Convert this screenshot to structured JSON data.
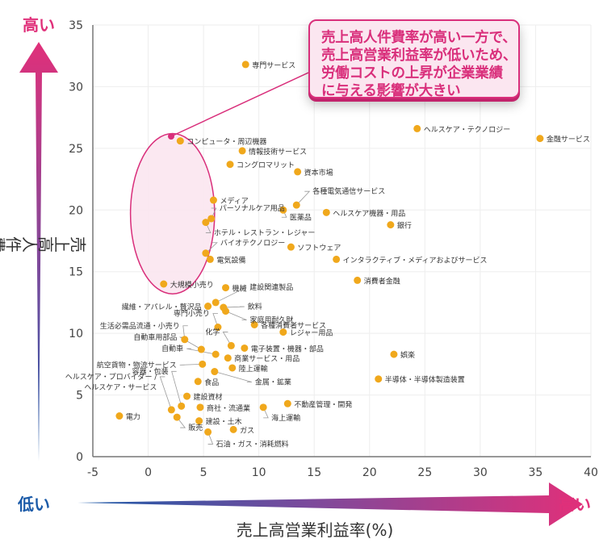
{
  "chart_data": {
    "type": "scatter",
    "title": "",
    "xlabel": "売上高営業利益率(%)",
    "ylabel": "売上高人件費率(%)",
    "xlim": [
      -5,
      40
    ],
    "ylim": [
      0,
      35
    ],
    "xticks": [
      "-5",
      "0",
      "5",
      "10",
      "15",
      "20",
      "25",
      "30",
      "35",
      "40"
    ],
    "yticks": [
      "0",
      "5",
      "10",
      "15",
      "20",
      "25",
      "30",
      "35"
    ],
    "grid": true,
    "point_color": "#f0a81c",
    "x_arrow": {
      "low": "低い",
      "high": "高い"
    },
    "y_arrow": {
      "low": "低い",
      "high": "高い"
    },
    "callout": {
      "lines": [
        "売上高人件費率が高い一方で、",
        "売上高営業利益率が低いため、",
        "労働コストの上昇が企業業績",
        "に与える影響が大きい"
      ],
      "color": "#d92f7b"
    },
    "highlight_region": {
      "x_center": 2.2,
      "y_center": 19.7,
      "x_radius": 3.8,
      "y_radius": 6.5
    },
    "points": [
      {
        "label": "専門サービス",
        "x": 8.8,
        "y": 31.8
      },
      {
        "label": "ヘルスケア・テクノロジー",
        "x": 24.3,
        "y": 26.6
      },
      {
        "label": "金融サービス",
        "x": 35.4,
        "y": 25.8
      },
      {
        "label": "コンピュータ・周辺機器",
        "x": 2.9,
        "y": 25.6
      },
      {
        "label": "情報技術サービス",
        "x": 8.5,
        "y": 24.8
      },
      {
        "label": "コングロマリット",
        "x": 7.4,
        "y": 23.7
      },
      {
        "label": "資本市場",
        "x": 13.5,
        "y": 23.1
      },
      {
        "label": "メディア",
        "x": 5.9,
        "y": 20.8
      },
      {
        "label": "各種電気通信サービス",
        "x": 13.4,
        "y": 20.4
      },
      {
        "label": "医薬品",
        "x": 12.2,
        "y": 20.0
      },
      {
        "label": "ヘルスケア機器・用品",
        "x": 16.1,
        "y": 19.8
      },
      {
        "label": "パーソナルケア用品",
        "x": 5.7,
        "y": 19.3
      },
      {
        "label": "ホテル・レストラン・レジャー",
        "x": 5.2,
        "y": 19.0
      },
      {
        "label": "銀行",
        "x": 21.9,
        "y": 18.8
      },
      {
        "label": "バイオテクノロジー",
        "x": 5.2,
        "y": 16.5
      },
      {
        "label": "ソフトウェア",
        "x": 12.9,
        "y": 17.0
      },
      {
        "label": "電気設備",
        "x": 5.6,
        "y": 16.0
      },
      {
        "label": "インタラクティブ・メディアおよびサービス",
        "x": 17.0,
        "y": 16.0
      },
      {
        "label": "大規模小売り",
        "x": 1.4,
        "y": 14.0
      },
      {
        "label": "消費者金融",
        "x": 18.9,
        "y": 14.3
      },
      {
        "label": "機械",
        "x": 7.0,
        "y": 13.7
      },
      {
        "label": "建設関連製品",
        "x": 6.1,
        "y": 12.5
      },
      {
        "label": "繊維・アパレル・贅沢品",
        "x": 5.4,
        "y": 12.2
      },
      {
        "label": "飲料",
        "x": 6.8,
        "y": 12.1
      },
      {
        "label": "家庭用耐久財",
        "x": 7.0,
        "y": 11.8
      },
      {
        "label": "専門小売り",
        "x": 6.3,
        "y": 10.5
      },
      {
        "label": "各種消費者サービス",
        "x": 9.6,
        "y": 10.7
      },
      {
        "label": "レジャー用品",
        "x": 12.2,
        "y": 10.1
      },
      {
        "label": "生活必需品流通・小売り",
        "x": 3.3,
        "y": 9.5
      },
      {
        "label": "化学",
        "x": 7.5,
        "y": 9.0
      },
      {
        "label": "電子装置・機器・部品",
        "x": 8.7,
        "y": 8.8
      },
      {
        "label": "自動車用部品",
        "x": 4.8,
        "y": 8.7
      },
      {
        "label": "自動車",
        "x": 6.1,
        "y": 8.3
      },
      {
        "label": "商業サービス・用品",
        "x": 7.2,
        "y": 8.0
      },
      {
        "label": "航空貨物・物流サービス",
        "x": 4.9,
        "y": 7.5
      },
      {
        "label": "陸上運輸",
        "x": 7.6,
        "y": 7.2
      },
      {
        "label": "金属・鉱業",
        "x": 6.0,
        "y": 6.9
      },
      {
        "label": "容器・包装",
        "x": 3.0,
        "y": 4.1
      },
      {
        "label": "食品",
        "x": 4.5,
        "y": 6.1
      },
      {
        "label": "ヘルスケア・プロバイダー / ヘルスケア・サービス",
        "x": 2.1,
        "y": 3.8
      },
      {
        "label": "建設資材",
        "x": 3.5,
        "y": 4.9
      },
      {
        "label": "娯楽",
        "x": 22.2,
        "y": 8.3
      },
      {
        "label": "半導体・半導体製造装置",
        "x": 20.8,
        "y": 6.3
      },
      {
        "label": "電力",
        "x": -2.6,
        "y": 3.3
      },
      {
        "label": "商社・流通業",
        "x": 4.7,
        "y": 4.0
      },
      {
        "label": "販売",
        "x": 2.6,
        "y": 3.2
      },
      {
        "label": "不動産管理・開発",
        "x": 12.6,
        "y": 4.3
      },
      {
        "label": "海上運輸",
        "x": 10.4,
        "y": 4.0
      },
      {
        "label": "建設・土木",
        "x": 4.6,
        "y": 2.9
      },
      {
        "label": "ガス",
        "x": 7.7,
        "y": 2.2
      },
      {
        "label": "石油・ガス・消耗燃料",
        "x": 5.4,
        "y": 2.0
      }
    ]
  }
}
